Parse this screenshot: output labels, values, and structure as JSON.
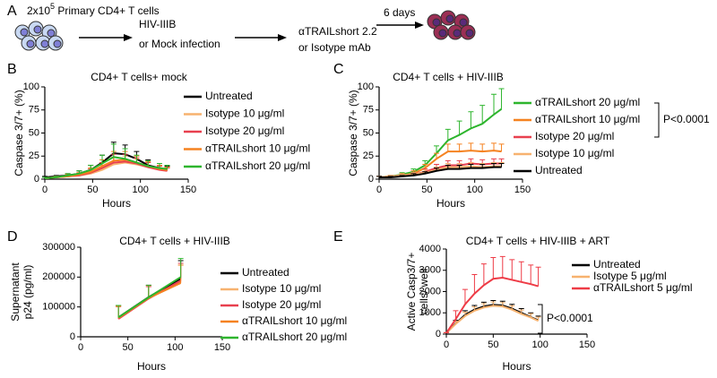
{
  "schematic": {
    "panel": "A",
    "cells_count": "2x10",
    "cells_exponent": "5",
    "cells_text": " Primary CD4+ T cells",
    "step1_line1": "HIV-IIIB",
    "step1_line2": "or Mock infection",
    "step2_line1": "αTRAILshort 2.2",
    "step2_line2": "or Isotype mAb",
    "step3": "6 days"
  },
  "chart_data": [
    {
      "type": "line",
      "panel": "B",
      "title": "CD4+ T cells+ mock",
      "xlabel": "Hours",
      "ylabel": [
        "Caspase 3/7+ (%)"
      ],
      "xlim": [
        0,
        150
      ],
      "xticks": [
        0,
        50,
        100,
        150
      ],
      "ylim": [
        0,
        100
      ],
      "yticks": [
        0,
        25,
        50,
        75,
        100
      ],
      "x": [
        0,
        12,
        24,
        36,
        48,
        60,
        72,
        84,
        96,
        108,
        120,
        128
      ],
      "series": [
        {
          "name": "Untreated",
          "color": "#000000",
          "values": [
            2,
            3,
            4,
            6,
            10,
            18,
            28,
            27,
            22,
            15,
            12,
            10
          ],
          "errors": [
            1,
            1,
            2,
            3,
            5,
            8,
            12,
            10,
            8,
            6,
            5,
            4
          ]
        },
        {
          "name": "Isotype 10 μg/ml",
          "color": "#f7b26f",
          "values": [
            1,
            2,
            3,
            4,
            6,
            10,
            16,
            18,
            16,
            13,
            11,
            10
          ],
          "errors": [
            1,
            1,
            1,
            2,
            3,
            5,
            8,
            7,
            6,
            5,
            4,
            3
          ]
        },
        {
          "name": "Isotype 20 μg/ml",
          "color": "#e8404f",
          "values": [
            1,
            2,
            3,
            4,
            7,
            12,
            18,
            19,
            17,
            13,
            10,
            9
          ],
          "errors": [
            1,
            1,
            1,
            2,
            4,
            6,
            9,
            8,
            6,
            5,
            4,
            3
          ]
        },
        {
          "name": "αTRAILshort 10 μg/ml",
          "color": "#f58220",
          "values": [
            1,
            2,
            3,
            5,
            8,
            14,
            20,
            21,
            18,
            14,
            11,
            10
          ],
          "errors": [
            1,
            1,
            2,
            2,
            4,
            7,
            10,
            9,
            7,
            5,
            4,
            3
          ]
        },
        {
          "name": "αTRAILshort 20 μg/ml",
          "color": "#2db52d",
          "values": [
            1,
            2,
            4,
            6,
            10,
            17,
            24,
            22,
            18,
            14,
            12,
            11
          ],
          "errors": [
            1,
            1,
            2,
            3,
            5,
            9,
            14,
            11,
            8,
            6,
            5,
            4
          ]
        }
      ]
    },
    {
      "type": "line",
      "panel": "C",
      "title": "CD4+ T cells + HIV-IIIB",
      "xlabel": "Hours",
      "ylabel": [
        "Caspase 3/7+ (%)"
      ],
      "annotation": "P<0.0001",
      "xlim": [
        0,
        150
      ],
      "xticks": [
        0,
        50,
        100,
        150
      ],
      "ylim": [
        0,
        100
      ],
      "yticks": [
        0,
        25,
        50,
        75,
        100
      ],
      "x": [
        0,
        12,
        24,
        36,
        48,
        60,
        72,
        84,
        96,
        108,
        120,
        128
      ],
      "series": [
        {
          "name": "αTRAILshort 20 μg/ml",
          "color": "#2db52d",
          "values": [
            2,
            3,
            5,
            8,
            15,
            28,
            42,
            48,
            55,
            60,
            70,
            76
          ],
          "errors": [
            1,
            1,
            2,
            3,
            5,
            8,
            12,
            15,
            18,
            20,
            22,
            22
          ]
        },
        {
          "name": "αTRAILshort 10 μg/ml",
          "color": "#f58220",
          "values": [
            2,
            3,
            4,
            6,
            12,
            22,
            30,
            30,
            31,
            30,
            31,
            30
          ],
          "errors": [
            1,
            1,
            2,
            3,
            4,
            6,
            8,
            8,
            8,
            8,
            8,
            8
          ]
        },
        {
          "name": "Isotype 20 μg/ml",
          "color": "#e8404f",
          "values": [
            2,
            3,
            4,
            5,
            8,
            12,
            15,
            15,
            17,
            16,
            17,
            17
          ],
          "errors": [
            1,
            1,
            1,
            2,
            3,
            4,
            5,
            5,
            5,
            5,
            5,
            5
          ]
        },
        {
          "name": "Isotype 10 μg/ml",
          "color": "#f7b26f",
          "values": [
            2,
            3,
            4,
            5,
            7,
            10,
            13,
            13,
            14,
            13,
            14,
            14
          ],
          "errors": [
            1,
            1,
            1,
            2,
            3,
            3,
            4,
            4,
            4,
            4,
            4,
            4
          ]
        },
        {
          "name": "Untreated",
          "color": "#000000",
          "values": [
            2,
            2,
            3,
            4,
            6,
            9,
            11,
            11,
            12,
            12,
            13,
            13
          ],
          "errors": [
            1,
            1,
            1,
            2,
            2,
            3,
            4,
            4,
            4,
            4,
            4,
            4
          ]
        }
      ]
    },
    {
      "type": "line",
      "panel": "D",
      "title": "CD4+ T cells + HIV-IIIB",
      "xlabel": "Hours",
      "ylabel": [
        "Supernatant",
        "p24 (pg/ml)"
      ],
      "xlim": [
        0,
        150
      ],
      "xticks": [
        0,
        50,
        100,
        150
      ],
      "ylim": [
        0,
        300000
      ],
      "yticks": [
        0,
        100000,
        200000,
        300000
      ],
      "x": [
        40,
        72,
        106
      ],
      "series": [
        {
          "name": "Untreated",
          "color": "#000000",
          "values": [
            65000,
            133000,
            195000
          ],
          "errors": [
            40000,
            40000,
            60000
          ]
        },
        {
          "name": "Isotype 10 μg/ml",
          "color": "#f7b26f",
          "values": [
            62000,
            130000,
            185000
          ],
          "errors": [
            38000,
            38000,
            55000
          ]
        },
        {
          "name": "Isotype 20 μg/ml",
          "color": "#e8404f",
          "values": [
            60000,
            128000,
            188000
          ],
          "errors": [
            42000,
            40000,
            58000
          ]
        },
        {
          "name": "αTRAILshort 10 μg/ml",
          "color": "#f58220",
          "values": [
            63000,
            130000,
            180000
          ],
          "errors": [
            40000,
            42000,
            60000
          ]
        },
        {
          "name": "αTRAILshort 20 μg/ml",
          "color": "#2db52d",
          "values": [
            65000,
            132000,
            200000
          ],
          "errors": [
            40000,
            40000,
            62000
          ]
        }
      ]
    },
    {
      "type": "line",
      "panel": "E",
      "title": "CD4+ T cells + HIV-IIIB + ART",
      "xlabel": "Hours",
      "ylabel": [
        "Active Casp3/7+",
        "cells/ well"
      ],
      "annotation": "P<0.0001",
      "xlim": [
        0,
        150
      ],
      "xticks": [
        0,
        50,
        100,
        150
      ],
      "ylim": [
        0,
        4000
      ],
      "yticks": [
        0,
        1000,
        2000,
        3000,
        4000
      ],
      "x": [
        0,
        10,
        20,
        30,
        40,
        50,
        60,
        70,
        80,
        90,
        98
      ],
      "series": [
        {
          "name": "Untreated",
          "color": "#000000",
          "values": [
            50,
            500,
            900,
            1150,
            1300,
            1380,
            1350,
            1200,
            1000,
            800,
            650
          ],
          "errors": [
            20,
            150,
            200,
            200,
            200,
            200,
            200,
            200,
            200,
            200,
            200
          ]
        },
        {
          "name": "Isotype 5 μg/ml",
          "color": "#f7b26f",
          "values": [
            50,
            480,
            850,
            1100,
            1250,
            1330,
            1300,
            1150,
            950,
            780,
            620
          ],
          "errors": [
            20,
            120,
            180,
            180,
            180,
            180,
            180,
            180,
            180,
            180,
            180
          ]
        },
        {
          "name": "αTRAILshort 5 μg/ml",
          "color": "#ee3b46",
          "values": [
            50,
            700,
            1400,
            1900,
            2300,
            2600,
            2650,
            2550,
            2450,
            2350,
            2250
          ],
          "errors": [
            20,
            400,
            700,
            900,
            1000,
            1000,
            1000,
            950,
            950,
            900,
            900
          ]
        }
      ]
    }
  ]
}
